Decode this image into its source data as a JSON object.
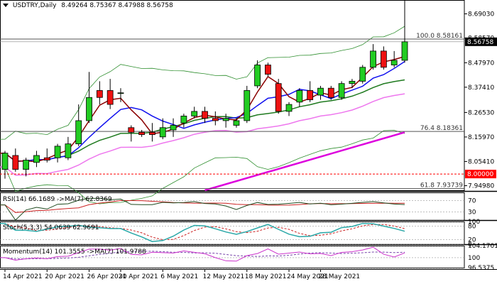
{
  "window": {
    "title": "USDTRY,Daily",
    "ohlc": "8.49264 8.75367 8.47988 8.56758",
    "collapse_icon": "triangle-down-icon"
  },
  "colors": {
    "bull": "#22cc22",
    "bear": "#ee1111",
    "ma_red": "#8b0000",
    "ma_blue": "#1010ee",
    "ma_green": "#1f7a1f",
    "ma_pink": "#ee77ee",
    "ma_magenta": "#dd00dd",
    "band": "#2f8f2f",
    "fib": "#555555",
    "level_red": "#ff0000",
    "rsi": "#1f4a1f",
    "rsi_ma": "#cc2222",
    "stoch_main": "#2aa8a8",
    "stoch_signal": "#cc2222",
    "mom": "#cc33cc",
    "mom_ma": "#7744aa"
  },
  "price_axis": {
    "ticks": [
      "8.69030",
      "8.58570",
      "8.47970",
      "8.37410",
      "8.26530",
      "8.15970",
      "8.05410",
      "7.94980"
    ],
    "current_price": "8.56758",
    "level_label": "8.00000"
  },
  "fib_levels": [
    {
      "label": "100.0 8.58161",
      "value": 8.58161
    },
    {
      "label": "76.4 8.18361",
      "value": 8.18361
    },
    {
      "label": "61.8 7.93739",
      "value": 7.93739
    }
  ],
  "horizontal_level": 8.0,
  "date_axis": [
    "14 Apr 2021",
    "20 Apr 2021",
    "26 Apr 2021",
    "30 Apr 2021",
    "6 May 2021",
    "12 May 2021",
    "18 May 2021",
    "24 May 2021",
    "28 May 2021"
  ],
  "indicators": {
    "rsi": {
      "label": "RSI(14) 66.1689 ->MA(7) 62.8369",
      "ticks": [
        "70",
        "30"
      ],
      "value": 66.1689,
      "ma": 62.8369
    },
    "stoch": {
      "label": "Stoch(5,3,3) 54.0639 62.9691",
      "ticks": [
        "100",
        "80",
        "20",
        "0"
      ],
      "main": 54.0639,
      "signal": 62.9691
    },
    "momentum": {
      "label": "Momentum(14) 101.3555 ->MA(7) 101.9788",
      "ticks": [
        "104.1701",
        "100",
        "96.5375"
      ],
      "value": 101.3555,
      "ma": 101.9788
    }
  },
  "chart_data": {
    "type": "candlestick",
    "symbol": "USDTRY",
    "timeframe": "Daily",
    "ylim": [
      7.93,
      8.75
    ],
    "candles": [
      {
        "o": 8.02,
        "h": 8.1,
        "l": 7.98,
        "c": 8.09
      },
      {
        "o": 8.08,
        "h": 8.11,
        "l": 8.01,
        "c": 8.02
      },
      {
        "o": 8.02,
        "h": 8.07,
        "l": 7.99,
        "c": 8.06
      },
      {
        "o": 8.05,
        "h": 8.1,
        "l": 8.03,
        "c": 8.08
      },
      {
        "o": 8.07,
        "h": 8.11,
        "l": 8.05,
        "c": 8.06
      },
      {
        "o": 8.07,
        "h": 8.13,
        "l": 8.05,
        "c": 8.12
      },
      {
        "o": 8.07,
        "h": 8.16,
        "l": 8.06,
        "c": 8.13
      },
      {
        "o": 8.13,
        "h": 8.3,
        "l": 8.12,
        "c": 8.23
      },
      {
        "o": 8.23,
        "h": 8.44,
        "l": 8.22,
        "c": 8.33
      },
      {
        "o": 8.36,
        "h": 8.4,
        "l": 8.3,
        "c": 8.33
      },
      {
        "o": 8.36,
        "h": 8.41,
        "l": 8.28,
        "c": 8.3
      },
      {
        "o": 8.35,
        "h": 8.37,
        "l": 8.31,
        "c": 8.35
      },
      {
        "o": 8.2,
        "h": 8.21,
        "l": 8.14,
        "c": 8.18
      },
      {
        "o": 8.18,
        "h": 8.19,
        "l": 8.16,
        "c": 8.17
      },
      {
        "o": 8.18,
        "h": 8.22,
        "l": 8.14,
        "c": 8.17
      },
      {
        "o": 8.16,
        "h": 8.24,
        "l": 8.15,
        "c": 8.2
      },
      {
        "o": 8.19,
        "h": 8.24,
        "l": 8.16,
        "c": 8.21
      },
      {
        "o": 8.22,
        "h": 8.26,
        "l": 8.2,
        "c": 8.25
      },
      {
        "o": 8.25,
        "h": 8.29,
        "l": 8.24,
        "c": 8.27
      },
      {
        "o": 8.27,
        "h": 8.29,
        "l": 8.22,
        "c": 8.24
      },
      {
        "o": 8.24,
        "h": 8.27,
        "l": 8.21,
        "c": 8.23
      },
      {
        "o": 8.23,
        "h": 8.26,
        "l": 8.2,
        "c": 8.24
      },
      {
        "o": 8.21,
        "h": 8.24,
        "l": 8.2,
        "c": 8.23
      },
      {
        "o": 8.23,
        "h": 8.38,
        "l": 8.22,
        "c": 8.36
      },
      {
        "o": 8.38,
        "h": 8.49,
        "l": 8.37,
        "c": 8.47
      },
      {
        "o": 8.47,
        "h": 8.48,
        "l": 8.42,
        "c": 8.43
      },
      {
        "o": 8.39,
        "h": 8.41,
        "l": 8.26,
        "c": 8.27
      },
      {
        "o": 8.27,
        "h": 8.31,
        "l": 8.25,
        "c": 8.3
      },
      {
        "o": 8.31,
        "h": 8.37,
        "l": 8.29,
        "c": 8.36
      },
      {
        "o": 8.36,
        "h": 8.4,
        "l": 8.31,
        "c": 8.32
      },
      {
        "o": 8.34,
        "h": 8.38,
        "l": 8.32,
        "c": 8.37
      },
      {
        "o": 8.37,
        "h": 8.38,
        "l": 8.32,
        "c": 8.33
      },
      {
        "o": 8.33,
        "h": 8.4,
        "l": 8.32,
        "c": 8.39
      },
      {
        "o": 8.39,
        "h": 8.41,
        "l": 8.37,
        "c": 8.4
      },
      {
        "o": 8.4,
        "h": 8.47,
        "l": 8.39,
        "c": 8.46
      },
      {
        "o": 8.46,
        "h": 8.56,
        "l": 8.45,
        "c": 8.53
      },
      {
        "o": 8.53,
        "h": 8.55,
        "l": 8.45,
        "c": 8.46
      },
      {
        "o": 8.47,
        "h": 8.53,
        "l": 8.46,
        "c": 8.49
      },
      {
        "o": 8.49,
        "h": 8.75,
        "l": 8.48,
        "c": 8.57
      }
    ]
  }
}
